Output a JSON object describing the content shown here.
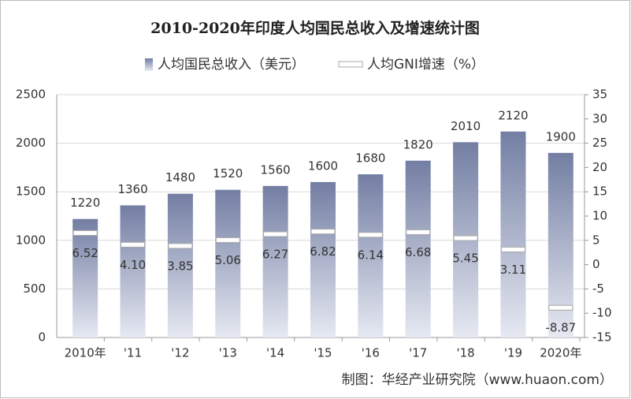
{
  "chart_data": {
    "type": "bar",
    "title": "2010-2020年印度人均国民总收入及增速统计图",
    "categories": [
      "2010年",
      "'11",
      "'12",
      "'13",
      "'14",
      "'15",
      "'16",
      "'17",
      "'18",
      "'19",
      "2020年"
    ],
    "series": [
      {
        "name": "人均国民总收入（美元）",
        "color": "#7b86ab",
        "values": [
          1220,
          1360,
          1480,
          1520,
          1560,
          1600,
          1680,
          1820,
          2010,
          2120,
          1900
        ]
      },
      {
        "name": "人均GNI增速（%）",
        "type": "line",
        "axis": "y2",
        "color": "#ffffff",
        "values": [
          6.52,
          4.1,
          3.85,
          5.06,
          6.27,
          6.82,
          6.14,
          6.68,
          5.45,
          3.11,
          -8.87
        ],
        "value_labels": [
          "6.52",
          "4.10",
          "3.85",
          "5.06",
          "6.27",
          "6.82",
          "6.14",
          "6.68",
          "5.45",
          "3.11",
          "-8.87"
        ]
      }
    ],
    "ylim": [
      0,
      2500
    ],
    "yticks": [
      0,
      500,
      1000,
      1500,
      2000,
      2500
    ],
    "y2lim": [
      -15,
      35
    ],
    "y2ticks": [
      -15,
      -10,
      -5,
      0,
      5,
      10,
      15,
      20,
      25,
      30,
      35
    ],
    "grid": true,
    "source": "制图：华经产业研究院（www.huaon.com）"
  }
}
